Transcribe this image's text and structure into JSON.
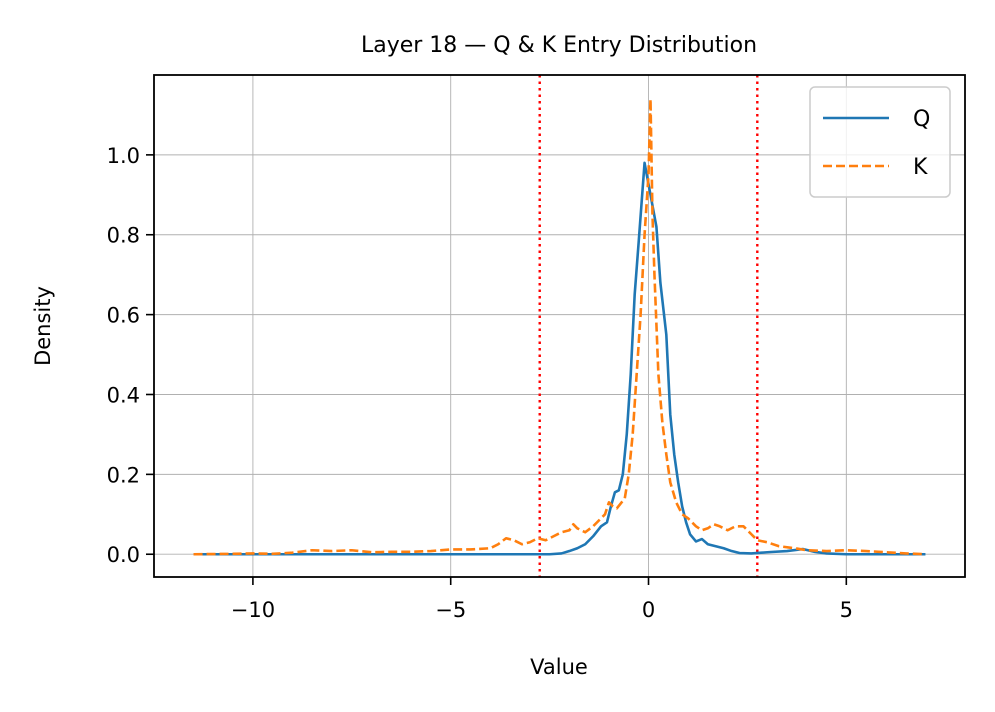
{
  "chart_data": {
    "type": "line",
    "title": "Layer 18 — Q & K Entry Distribution",
    "xlabel": "Value",
    "ylabel": "Density",
    "xlim": [
      -12.5,
      8.0
    ],
    "ylim": [
      -0.057,
      1.2
    ],
    "grid": true,
    "legend_position": "upper-right",
    "x_ticks": [
      -10,
      -5,
      0,
      5
    ],
    "x_tick_labels": [
      "−10",
      "−5",
      "0",
      "5"
    ],
    "y_ticks": [
      0.0,
      0.2,
      0.4,
      0.6,
      0.8,
      1.0
    ],
    "y_tick_labels": [
      "0.0",
      "0.2",
      "0.4",
      "0.6",
      "0.8",
      "1.0"
    ],
    "vlines": [
      {
        "x": -2.75,
        "color": "#ff0000",
        "style": "dotted"
      },
      {
        "x": 2.75,
        "color": "#ff0000",
        "style": "dotted"
      }
    ],
    "series": [
      {
        "name": "Q",
        "color": "#1f77b4",
        "style": "solid",
        "points": [
          [
            -11.5,
            0.0
          ],
          [
            -10.0,
            0.0
          ],
          [
            -8.0,
            0.0
          ],
          [
            -6.0,
            0.0
          ],
          [
            -4.0,
            0.0
          ],
          [
            -2.5,
            0.0
          ],
          [
            -2.2,
            0.002
          ],
          [
            -2.0,
            0.008
          ],
          [
            -1.8,
            0.015
          ],
          [
            -1.6,
            0.025
          ],
          [
            -1.4,
            0.045
          ],
          [
            -1.2,
            0.07
          ],
          [
            -1.05,
            0.08
          ],
          [
            -0.95,
            0.12
          ],
          [
            -0.85,
            0.155
          ],
          [
            -0.75,
            0.16
          ],
          [
            -0.65,
            0.2
          ],
          [
            -0.55,
            0.3
          ],
          [
            -0.45,
            0.45
          ],
          [
            -0.35,
            0.65
          ],
          [
            -0.25,
            0.78
          ],
          [
            -0.1,
            0.98
          ],
          [
            0.05,
            0.9
          ],
          [
            0.2,
            0.82
          ],
          [
            0.3,
            0.68
          ],
          [
            0.45,
            0.55
          ],
          [
            0.55,
            0.35
          ],
          [
            0.65,
            0.25
          ],
          [
            0.75,
            0.18
          ],
          [
            0.85,
            0.12
          ],
          [
            0.95,
            0.08
          ],
          [
            1.05,
            0.05
          ],
          [
            1.2,
            0.032
          ],
          [
            1.35,
            0.038
          ],
          [
            1.5,
            0.025
          ],
          [
            1.7,
            0.02
          ],
          [
            1.9,
            0.015
          ],
          [
            2.1,
            0.008
          ],
          [
            2.3,
            0.003
          ],
          [
            2.6,
            0.002
          ],
          [
            3.0,
            0.005
          ],
          [
            3.5,
            0.008
          ],
          [
            3.9,
            0.013
          ],
          [
            4.2,
            0.006
          ],
          [
            4.5,
            0.002
          ],
          [
            5.0,
            0.0
          ],
          [
            6.0,
            0.0
          ],
          [
            7.0,
            0.0
          ]
        ]
      },
      {
        "name": "K",
        "color": "#ff7f0e",
        "style": "dashed",
        "points": [
          [
            -11.5,
            0.0
          ],
          [
            -10.5,
            0.001
          ],
          [
            -10.0,
            0.002
          ],
          [
            -9.5,
            0.001
          ],
          [
            -9.0,
            0.004
          ],
          [
            -8.5,
            0.01
          ],
          [
            -8.0,
            0.008
          ],
          [
            -7.5,
            0.01
          ],
          [
            -7.0,
            0.005
          ],
          [
            -6.5,
            0.006
          ],
          [
            -6.0,
            0.006
          ],
          [
            -5.5,
            0.008
          ],
          [
            -5.0,
            0.012
          ],
          [
            -4.5,
            0.012
          ],
          [
            -4.0,
            0.015
          ],
          [
            -3.8,
            0.025
          ],
          [
            -3.6,
            0.04
          ],
          [
            -3.4,
            0.035
          ],
          [
            -3.2,
            0.025
          ],
          [
            -3.0,
            0.03
          ],
          [
            -2.8,
            0.04
          ],
          [
            -2.6,
            0.035
          ],
          [
            -2.4,
            0.045
          ],
          [
            -2.2,
            0.055
          ],
          [
            -2.0,
            0.06
          ],
          [
            -1.9,
            0.075
          ],
          [
            -1.8,
            0.065
          ],
          [
            -1.6,
            0.055
          ],
          [
            -1.4,
            0.07
          ],
          [
            -1.2,
            0.09
          ],
          [
            -1.1,
            0.1
          ],
          [
            -1.0,
            0.13
          ],
          [
            -0.9,
            0.12
          ],
          [
            -0.8,
            0.115
          ],
          [
            -0.6,
            0.14
          ],
          [
            -0.5,
            0.2
          ],
          [
            -0.4,
            0.3
          ],
          [
            -0.3,
            0.45
          ],
          [
            -0.2,
            0.6
          ],
          [
            -0.1,
            0.8
          ],
          [
            0.0,
            0.95
          ],
          [
            0.05,
            1.14
          ],
          [
            0.1,
            0.85
          ],
          [
            0.15,
            0.7
          ],
          [
            0.25,
            0.45
          ],
          [
            0.35,
            0.33
          ],
          [
            0.45,
            0.25
          ],
          [
            0.55,
            0.18
          ],
          [
            0.7,
            0.13
          ],
          [
            0.85,
            0.1
          ],
          [
            1.0,
            0.09
          ],
          [
            1.2,
            0.07
          ],
          [
            1.35,
            0.06
          ],
          [
            1.5,
            0.065
          ],
          [
            1.65,
            0.075
          ],
          [
            1.8,
            0.07
          ],
          [
            2.0,
            0.06
          ],
          [
            2.2,
            0.07
          ],
          [
            2.4,
            0.07
          ],
          [
            2.6,
            0.05
          ],
          [
            2.75,
            0.035
          ],
          [
            3.0,
            0.03
          ],
          [
            3.3,
            0.02
          ],
          [
            3.7,
            0.015
          ],
          [
            4.0,
            0.01
          ],
          [
            4.5,
            0.008
          ],
          [
            5.0,
            0.01
          ],
          [
            5.5,
            0.008
          ],
          [
            6.0,
            0.005
          ],
          [
            6.5,
            0.002
          ],
          [
            7.0,
            0.0
          ]
        ]
      }
    ]
  }
}
